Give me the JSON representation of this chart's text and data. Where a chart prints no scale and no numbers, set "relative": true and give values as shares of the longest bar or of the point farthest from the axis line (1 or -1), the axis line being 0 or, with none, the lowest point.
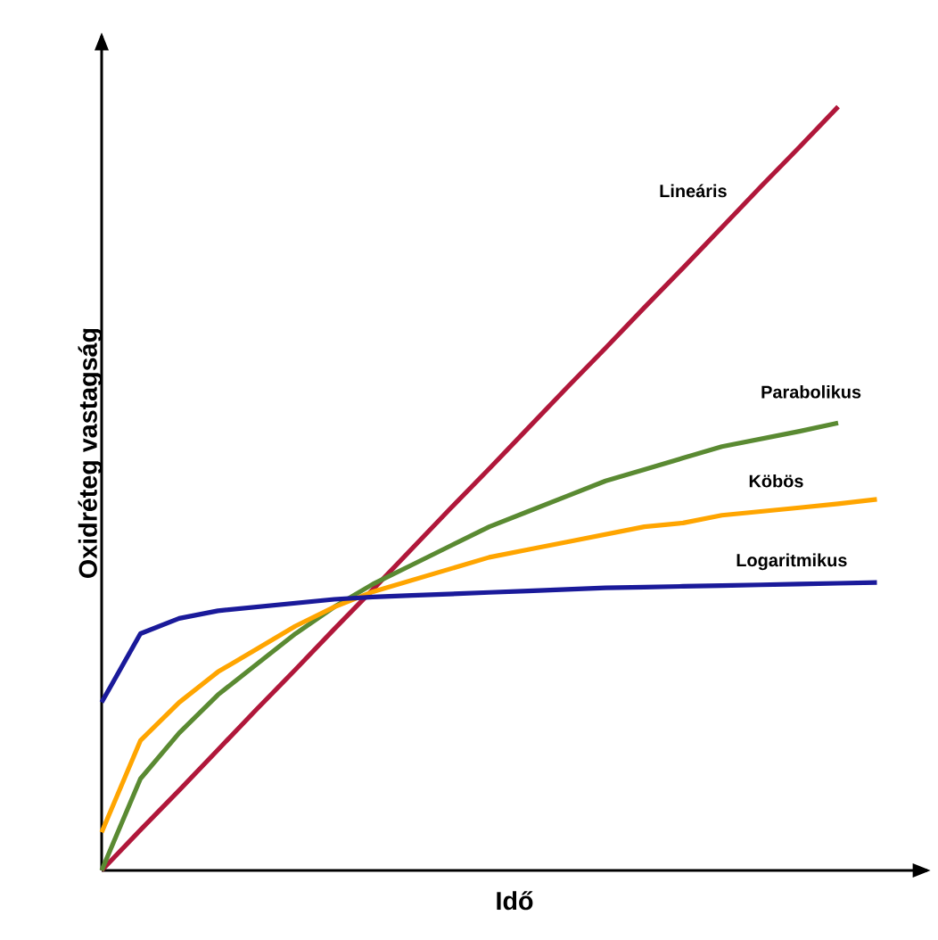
{
  "chart_data": {
    "type": "line",
    "relative": true,
    "xlabel": "Idő",
    "ylabel": "Oxidréteg vastagság",
    "legend": false,
    "marker": "none",
    "line_style": "solid",
    "categories": [
      null,
      null,
      null,
      null,
      null,
      null,
      null,
      null,
      null,
      null,
      null,
      null,
      null,
      null,
      null,
      null,
      null,
      null,
      null,
      null,
      null
    ],
    "series": [
      {
        "name": "Lineáris",
        "color": "#b0173a",
        "values": [
          0,
          0.053,
          0.105,
          0.158,
          0.211,
          0.263,
          0.316,
          0.368,
          0.421,
          0.474,
          0.526,
          0.579,
          0.632,
          0.684,
          0.737,
          0.789,
          0.842,
          0.895,
          0.947,
          1,
          null
        ]
      },
      {
        "name": "Parabolikus",
        "color": "#5a8a32",
        "values": [
          0,
          0.12,
          0.18,
          0.23,
          0.27,
          0.31,
          0.345,
          0.375,
          0.4,
          0.425,
          0.45,
          0.47,
          0.49,
          0.51,
          0.525,
          0.54,
          0.555,
          0.565,
          0.575,
          0.586,
          null
        ]
      },
      {
        "name": "Köbös",
        "color": "#ffa500",
        "values": [
          0.05,
          0.17,
          0.22,
          0.26,
          0.29,
          0.32,
          0.345,
          0.365,
          0.38,
          0.395,
          0.41,
          0.42,
          0.43,
          0.44,
          0.45,
          0.455,
          0.465,
          0.47,
          0.475,
          0.48,
          0.486
        ]
      },
      {
        "name": "Logaritmikus",
        "color": "#1a1a9a",
        "values": [
          0.22,
          0.31,
          0.33,
          0.34,
          0.345,
          0.35,
          0.355,
          0.358,
          0.36,
          0.362,
          0.364,
          0.366,
          0.368,
          0.37,
          0.371,
          0.372,
          0.373,
          0.374,
          0.375,
          0.376,
          0.377
        ]
      }
    ]
  }
}
